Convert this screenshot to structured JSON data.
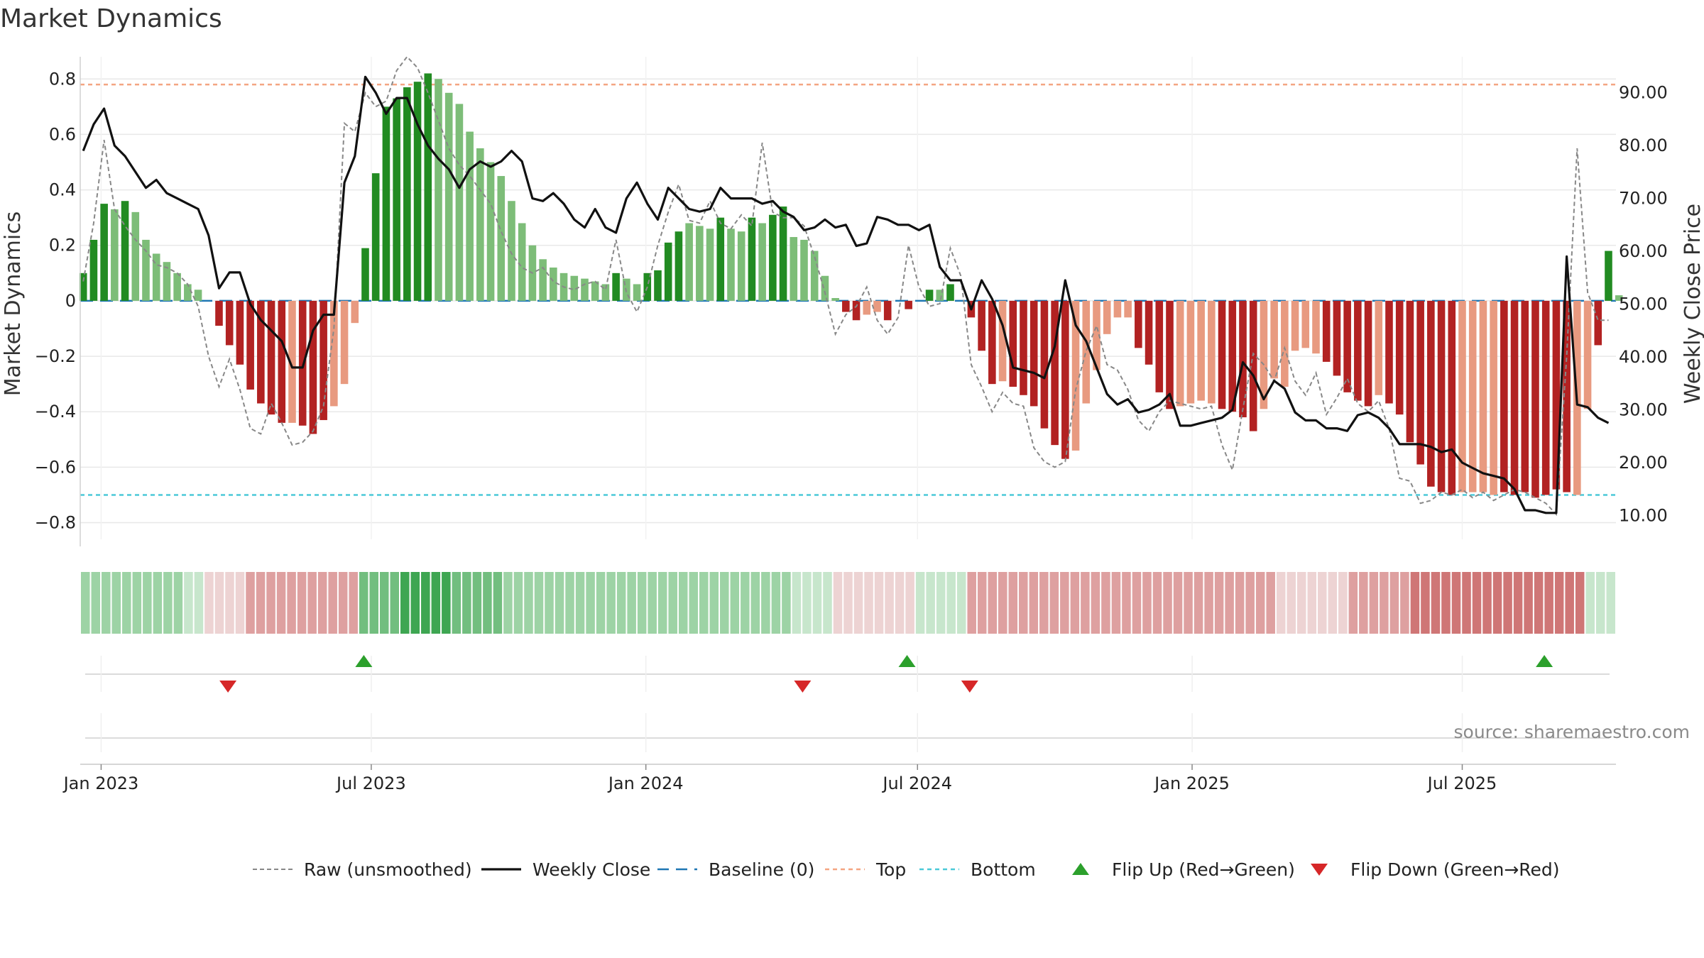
{
  "chart_data": {
    "type": "bar",
    "title": "Market Dynamics",
    "ylabel_left": "Market Dynamics",
    "ylabel_right": "Weekly Close Price",
    "ylim_left": [
      -0.86,
      0.88
    ],
    "ylim_right": [
      5.5,
      96.8
    ],
    "yticks_left": [
      0.8,
      0.6,
      0.4,
      0.2,
      0,
      -0.2,
      -0.4,
      -0.6,
      -0.8
    ],
    "yticks_left_labels": [
      "0.8",
      "0.6",
      "0.4",
      "0.2",
      "0",
      "−0.2",
      "−0.4",
      "−0.6",
      "−0.8"
    ],
    "yticks_right": [
      90,
      80,
      70,
      60,
      50,
      40,
      30,
      20,
      10
    ],
    "yticks_right_labels": [
      "90.00",
      "80.00",
      "70.00",
      "60.00",
      "50.00",
      "40.00",
      "30.00",
      "20.00",
      "10.00"
    ],
    "xticks": [
      {
        "date": "2023-01-01",
        "label": "Jan 2023"
      },
      {
        "date": "2023-07-01",
        "label": "Jul 2023"
      },
      {
        "date": "2024-01-01",
        "label": "Jan 2024"
      },
      {
        "date": "2024-07-01",
        "label": "Jul 2024"
      },
      {
        "date": "2025-01-01",
        "label": "Jan 2025"
      },
      {
        "date": "2025-07-01",
        "label": "Jul 2025"
      }
    ],
    "start_date": "2022-12-18",
    "end_date": "2025-10-12",
    "weekly_start": "2022-12-20",
    "thresholds": {
      "baseline": 0,
      "top": 0.78,
      "bottom": -0.7
    },
    "bars": [
      0.1,
      0.22,
      0.35,
      0.33,
      0.36,
      0.32,
      0.22,
      0.17,
      0.14,
      0.1,
      0.06,
      0.04,
      0.0,
      -0.09,
      -0.16,
      -0.23,
      -0.32,
      -0.37,
      -0.41,
      -0.44,
      -0.44,
      -0.45,
      -0.48,
      -0.43,
      -0.38,
      -0.3,
      -0.08,
      0.19,
      0.46,
      0.7,
      0.73,
      0.77,
      0.79,
      0.82,
      0.8,
      0.75,
      0.71,
      0.61,
      0.55,
      0.5,
      0.45,
      0.36,
      0.28,
      0.2,
      0.15,
      0.12,
      0.1,
      0.09,
      0.08,
      0.07,
      0.06,
      0.1,
      0.08,
      0.06,
      0.1,
      0.11,
      0.21,
      0.25,
      0.28,
      0.27,
      0.26,
      0.3,
      0.26,
      0.25,
      0.3,
      0.28,
      0.31,
      0.34,
      0.23,
      0.22,
      0.18,
      0.09,
      0.01,
      -0.04,
      -0.07,
      -0.05,
      -0.04,
      -0.07,
      0.0,
      -0.03,
      0.0,
      0.04,
      0.04,
      0.06,
      0.0,
      -0.06,
      -0.18,
      -0.3,
      -0.29,
      -0.31,
      -0.34,
      -0.38,
      -0.46,
      -0.52,
      -0.57,
      -0.54,
      -0.37,
      -0.25,
      -0.12,
      -0.06,
      -0.06,
      -0.17,
      -0.23,
      -0.33,
      -0.39,
      -0.38,
      -0.37,
      -0.36,
      -0.37,
      -0.39,
      -0.4,
      -0.42,
      -0.47,
      -0.39,
      -0.28,
      -0.31,
      -0.18,
      -0.17,
      -0.19,
      -0.22,
      -0.27,
      -0.33,
      -0.36,
      -0.38,
      -0.34,
      -0.37,
      -0.41,
      -0.51,
      -0.59,
      -0.67,
      -0.69,
      -0.7,
      -0.69,
      -0.69,
      -0.69,
      -0.7,
      -0.69,
      -0.7,
      -0.69,
      -0.71,
      -0.7,
      -0.68,
      -0.69,
      -0.7,
      -0.39,
      -0.16,
      0.18,
      0.02
    ],
    "bar_strength": [
      1,
      1,
      1,
      0,
      1,
      0,
      0,
      0,
      0,
      0,
      0,
      0,
      0,
      1,
      1,
      1,
      1,
      1,
      1,
      1,
      0,
      1,
      1,
      1,
      0,
      0,
      0,
      1,
      1,
      1,
      1,
      1,
      1,
      1,
      0,
      0,
      0,
      0,
      0,
      0,
      0,
      0,
      0,
      0,
      0,
      0,
      0,
      0,
      0,
      0,
      0,
      1,
      0,
      0,
      1,
      1,
      1,
      1,
      0,
      0,
      0,
      1,
      0,
      0,
      1,
      0,
      1,
      1,
      0,
      0,
      0,
      0,
      0,
      1,
      1,
      0,
      0,
      1,
      0,
      1,
      0,
      1,
      0,
      1,
      0,
      1,
      1,
      1,
      0,
      1,
      1,
      1,
      1,
      1,
      1,
      0,
      0,
      0,
      0,
      0,
      0,
      1,
      1,
      1,
      1,
      0,
      0,
      0,
      0,
      1,
      1,
      1,
      1,
      0,
      0,
      0,
      0,
      0,
      0,
      1,
      1,
      1,
      1,
      1,
      0,
      1,
      1,
      1,
      1,
      1,
      1,
      1,
      0,
      0,
      0,
      0,
      1,
      1,
      1,
      1,
      1,
      1,
      1,
      0,
      0,
      1,
      1,
      0
    ],
    "raw_unsmoothed": [
      0.07,
      0.28,
      0.58,
      0.33,
      0.27,
      0.22,
      0.18,
      0.13,
      0.12,
      0.1,
      0.06,
      -0.02,
      -0.2,
      -0.31,
      -0.21,
      -0.32,
      -0.46,
      -0.48,
      -0.37,
      -0.44,
      -0.52,
      -0.51,
      -0.47,
      -0.38,
      -0.1,
      0.64,
      0.61,
      0.75,
      0.7,
      0.72,
      0.83,
      0.88,
      0.84,
      0.75,
      0.65,
      0.55,
      0.49,
      0.45,
      0.4,
      0.35,
      0.25,
      0.17,
      0.12,
      0.1,
      0.12,
      0.07,
      0.05,
      0.04,
      0.06,
      0.07,
      0.04,
      0.22,
      0.03,
      -0.04,
      0.05,
      0.2,
      0.32,
      0.42,
      0.29,
      0.28,
      0.36,
      0.28,
      0.26,
      0.31,
      0.27,
      0.57,
      0.32,
      0.3,
      0.3,
      0.27,
      0.16,
      0.03,
      -0.12,
      -0.05,
      -0.02,
      0.05,
      -0.07,
      -0.12,
      -0.06,
      0.2,
      0.05,
      -0.02,
      -0.01,
      0.19,
      0.09,
      -0.23,
      -0.31,
      -0.4,
      -0.33,
      -0.37,
      -0.38,
      -0.53,
      -0.58,
      -0.6,
      -0.58,
      -0.32,
      -0.18,
      -0.09,
      -0.23,
      -0.25,
      -0.32,
      -0.43,
      -0.47,
      -0.4,
      -0.36,
      -0.37,
      -0.38,
      -0.39,
      -0.38,
      -0.52,
      -0.61,
      -0.39,
      -0.19,
      -0.23,
      -0.29,
      -0.17,
      -0.29,
      -0.34,
      -0.26,
      -0.41,
      -0.35,
      -0.28,
      -0.37,
      -0.4,
      -0.36,
      -0.46,
      -0.64,
      -0.65,
      -0.73,
      -0.72,
      -0.69,
      -0.7,
      -0.68,
      -0.71,
      -0.69,
      -0.72,
      -0.7,
      -0.68,
      -0.69,
      -0.71,
      -0.73,
      -0.77,
      -0.2,
      0.55,
      0.03,
      -0.07,
      -0.07
    ],
    "weekly_close": [
      79,
      84,
      87,
      80,
      78,
      75,
      72,
      73.5,
      71,
      70,
      69,
      68,
      63,
      53,
      56,
      56,
      50,
      47,
      45,
      43,
      38,
      38,
      45,
      48,
      48,
      73,
      78,
      93,
      90,
      86,
      89,
      89,
      84,
      80,
      77.5,
      75.5,
      72,
      75.5,
      77,
      76,
      77,
      79,
      77,
      70,
      69.5,
      71,
      69,
      66,
      64.5,
      68,
      64.5,
      63.5,
      70,
      73,
      69,
      66,
      72,
      70,
      68,
      67.5,
      68,
      72,
      70,
      70,
      70,
      69,
      69.5,
      67.5,
      66.5,
      64,
      64.5,
      66,
      64.5,
      65,
      61,
      61.5,
      66.5,
      66,
      65,
      65,
      64,
      65,
      57,
      54.5,
      54.5,
      49,
      54.5,
      51,
      46,
      38,
      37.5,
      37,
      36,
      42,
      54.5,
      46,
      43,
      38,
      33,
      31,
      32,
      29.5,
      30,
      31,
      33,
      27,
      27,
      27.5,
      28,
      28.5,
      30,
      39,
      36.5,
      32,
      35.5,
      34,
      29.5,
      28,
      28,
      26.5,
      26.5,
      26,
      29,
      29.5,
      28.5,
      26.5,
      23.5,
      23.5,
      23.5,
      23,
      22,
      22.5,
      20,
      19,
      18,
      17.5,
      17,
      15,
      11,
      11,
      10.5,
      10.5,
      59,
      31,
      30.5,
      28.5,
      27.5
    ],
    "color_strip": [
      "g2",
      "g2",
      "g2",
      "g2",
      "g2",
      "g2",
      "g2",
      "g2",
      "g2",
      "g2",
      "g1",
      "g1",
      "r1",
      "r1",
      "r1",
      "r1",
      "r2",
      "r2",
      "r2",
      "r2",
      "r2",
      "r2",
      "r2",
      "r2",
      "r2",
      "r2",
      "r2",
      "g3",
      "g3",
      "g3",
      "g3",
      "g4",
      "g4",
      "g4",
      "g4",
      "g4",
      "g3",
      "g3",
      "g3",
      "g3",
      "g3",
      "g2",
      "g2",
      "g2",
      "g2",
      "g2",
      "g2",
      "g2",
      "g2",
      "g2",
      "g2",
      "g2",
      "g2",
      "g2",
      "g2",
      "g2",
      "g2",
      "g2",
      "g2",
      "g2",
      "g2",
      "g2",
      "g2",
      "g2",
      "g2",
      "g2",
      "g2",
      "g2",
      "g2",
      "g1",
      "g1",
      "g1",
      "g1",
      "r1",
      "r1",
      "r1",
      "r1",
      "r1",
      "r1",
      "r1",
      "r1",
      "g1",
      "g1",
      "g1",
      "g1",
      "g1",
      "r2",
      "r2",
      "r2",
      "r2",
      "r2",
      "r2",
      "r2",
      "r2",
      "r2",
      "r2",
      "r2",
      "r2",
      "r2",
      "r2",
      "r2",
      "r2",
      "r2",
      "r2",
      "r2",
      "r2",
      "r2",
      "r2",
      "r2",
      "r2",
      "r2",
      "r2",
      "r2",
      "r2",
      "r2",
      "r2",
      "r1",
      "r1",
      "r1",
      "r1",
      "r1",
      "r1",
      "r1",
      "r2",
      "r2",
      "r2",
      "r2",
      "r2",
      "r2",
      "r3",
      "r3",
      "r3",
      "r3",
      "r3",
      "r3",
      "r3",
      "r3",
      "r3",
      "r3",
      "r3",
      "r3",
      "r3",
      "r3",
      "r3",
      "r3",
      "r3",
      "g1",
      "g1",
      "g1"
    ],
    "flip_up_dates": [
      "2023-06-26",
      "2024-06-24",
      "2025-08-25"
    ],
    "flip_down_dates": [
      "2023-03-27",
      "2024-04-15",
      "2024-08-05"
    ],
    "legend": [
      {
        "key": "raw",
        "label": "Raw (unsmoothed)"
      },
      {
        "key": "close",
        "label": "Weekly Close"
      },
      {
        "key": "baseline",
        "label": "Baseline (0)"
      },
      {
        "key": "top",
        "label": "Top"
      },
      {
        "key": "bottom",
        "label": "Bottom"
      },
      {
        "key": "flipup",
        "label": "Flip Up (Red→Green)"
      },
      {
        "key": "flipdown",
        "label": "Flip Down (Green→Red)"
      }
    ],
    "legend_placement": "bottom-center",
    "grid": true
  },
  "source": "source: sharemaestro.com",
  "colors": {
    "pos_strong": "#228b22",
    "pos_weak": "#7dbd78",
    "neg_strong": "#b22222",
    "neg_weak": "#e89a80",
    "close_line": "#111111",
    "raw_line": "#888888",
    "baseline": "#1f77b4",
    "top": "#f4a582",
    "bottom": "#4cc9d8",
    "flip_up": "#2ca02c",
    "flip_down": "#d62728",
    "grid": "#e8e8e8",
    "strip_g1": "#c7e6cc",
    "strip_g2": "#9dd3a5",
    "strip_g3": "#72be7f",
    "strip_g4": "#3ea652",
    "strip_r1": "#edd3d3",
    "strip_r2": "#dea0a0",
    "strip_r3": "#cf7676"
  }
}
